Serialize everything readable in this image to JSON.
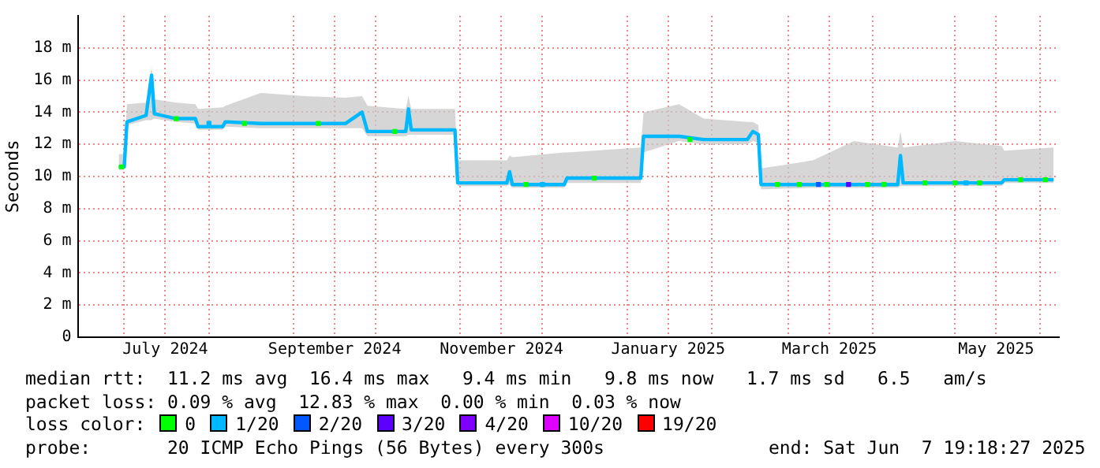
{
  "chart_data": {
    "type": "line",
    "ylabel": "Seconds",
    "legend_title": "loss color:",
    "legend": "bottom",
    "grid": true,
    "xlim": [
      "2024-06-14",
      "2025-06-08"
    ],
    "xticks": [
      {
        "value": "2024-07-01",
        "label": null
      },
      {
        "value": "2024-07-16",
        "label": "July 2024"
      },
      {
        "value": "2024-08-01",
        "label": null
      },
      {
        "value": "2024-09-01",
        "label": null
      },
      {
        "value": "2024-09-16",
        "label": "September 2024"
      },
      {
        "value": "2024-10-01",
        "label": null
      },
      {
        "value": "2024-11-01",
        "label": null
      },
      {
        "value": "2024-11-16",
        "label": "November 2024"
      },
      {
        "value": "2024-12-01",
        "label": null
      },
      {
        "value": "2025-01-01",
        "label": null
      },
      {
        "value": "2025-01-16",
        "label": "January 2025"
      },
      {
        "value": "2025-02-01",
        "label": null
      },
      {
        "value": "2025-03-01",
        "label": null
      },
      {
        "value": "2025-03-16",
        "label": "March 2025"
      },
      {
        "value": "2025-04-01",
        "label": null
      },
      {
        "value": "2025-05-01",
        "label": null
      },
      {
        "value": "2025-05-16",
        "label": "May 2025"
      },
      {
        "value": "2025-06-01",
        "label": null
      }
    ],
    "ylim": [
      0,
      20
    ],
    "yticks": [
      0,
      {
        "value": 2,
        "label": "2 m"
      },
      {
        "value": 4,
        "label": "4 m"
      },
      {
        "value": 6,
        "label": "6 m"
      },
      {
        "value": 8,
        "label": "8 m"
      },
      {
        "value": 10,
        "label": "10 m"
      },
      {
        "value": 12,
        "label": "12 m"
      },
      {
        "value": 14,
        "label": "14 m"
      },
      {
        "value": 16,
        "label": "16 m"
      },
      {
        "value": 18,
        "label": "18 m"
      }
    ],
    "x": [
      "2024-06-29",
      "2024-07-01",
      "2024-07-02",
      "2024-07-09",
      "2024-07-11",
      "2024-07-12",
      "2024-07-20",
      "2024-07-27",
      "2024-07-28",
      "2024-08-06",
      "2024-08-07",
      "2024-08-20",
      "2024-09-05",
      "2024-09-20",
      "2024-09-26",
      "2024-09-28",
      "2024-10-12",
      "2024-10-13",
      "2024-10-14",
      "2024-10-30",
      "2024-10-31",
      "2024-11-18",
      "2024-11-19",
      "2024-11-20",
      "2024-12-09",
      "2024-12-10",
      "2025-01-06",
      "2025-01-07",
      "2025-01-20",
      "2025-01-29",
      "2025-02-14",
      "2025-02-16",
      "2025-02-18",
      "2025-02-19",
      "2025-03-10",
      "2025-03-25",
      "2025-04-10",
      "2025-04-11",
      "2025-04-12",
      "2025-05-01",
      "2025-05-18",
      "2025-05-19",
      "2025-06-06"
    ],
    "series": [
      {
        "type": "line",
        "color": "#00b8ff",
        "values": [
          10.6,
          10.6,
          13.4,
          13.8,
          16.3,
          13.9,
          13.6,
          13.6,
          13.1,
          13.1,
          13.4,
          13.3,
          13.3,
          13.3,
          14.0,
          12.8,
          12.8,
          14.2,
          12.9,
          12.9,
          9.6,
          9.6,
          10.3,
          9.5,
          9.5,
          9.9,
          9.9,
          12.5,
          12.5,
          12.3,
          12.3,
          12.8,
          12.6,
          9.5,
          9.5,
          9.5,
          9.5,
          11.3,
          9.6,
          9.6,
          9.6,
          9.8,
          9.8
        ],
        "lower": [
          10.4,
          10.4,
          13.2,
          13.5,
          13.5,
          13.6,
          13.4,
          13.3,
          12.9,
          12.9,
          13.1,
          13.0,
          13.0,
          13.0,
          13.0,
          12.5,
          12.5,
          12.6,
          12.6,
          12.6,
          9.4,
          9.4,
          9.5,
          9.3,
          9.3,
          9.6,
          9.6,
          11.5,
          12.2,
          12.0,
          12.0,
          12.2,
          12.1,
          9.2,
          9.3,
          9.3,
          9.3,
          9.4,
          9.4,
          9.4,
          9.4,
          9.6,
          9.6
        ],
        "upper": [
          11.4,
          11.4,
          14.5,
          14.6,
          16.8,
          14.8,
          14.6,
          14.5,
          14.2,
          14.3,
          14.4,
          15.2,
          15.0,
          14.9,
          15.0,
          14.4,
          14.2,
          15.0,
          14.2,
          14.2,
          11.0,
          11.0,
          11.3,
          11.2,
          11.5,
          11.5,
          11.8,
          14.0,
          14.5,
          13.6,
          13.4,
          13.4,
          13.2,
          10.5,
          11.0,
          12.2,
          11.8,
          12.8,
          11.8,
          12.2,
          11.9,
          11.6,
          11.8
        ]
      },
      {
        "type": "scatter",
        "name": "0",
        "color": "#00ff00",
        "marker": "square",
        "x": [
          "2024-06-30",
          "2024-07-20",
          "2024-08-14",
          "2024-09-10",
          "2024-10-08",
          "2024-11-25",
          "2024-12-20",
          "2025-01-24",
          "2025-02-25",
          "2025-03-05",
          "2025-03-15",
          "2025-03-30",
          "2025-04-05",
          "2025-04-20",
          "2025-05-01",
          "2025-05-10",
          "2025-05-25",
          "2025-06-03"
        ],
        "values": [
          10.6,
          13.6,
          13.3,
          13.3,
          12.8,
          9.5,
          9.9,
          12.3,
          9.5,
          9.5,
          9.5,
          9.5,
          9.5,
          9.6,
          9.6,
          9.6,
          9.8,
          9.8
        ]
      },
      {
        "type": "scatter",
        "name": "1/20",
        "color": "#00b8ff",
        "marker": "square",
        "x": [
          "2024-08-01",
          "2024-12-01",
          "2025-05-05"
        ],
        "values": [
          13.3,
          9.5,
          9.6
        ]
      },
      {
        "type": "scatter",
        "name": "2/20",
        "color": "#0059ff",
        "marker": "square",
        "x": [
          "2025-03-12"
        ],
        "values": [
          9.5
        ]
      },
      {
        "type": "scatter",
        "name": "3/20",
        "color": "#5e00ff",
        "marker": "square",
        "x": [
          "2025-03-23"
        ],
        "values": [
          9.5
        ]
      },
      {
        "type": "scatter",
        "name": "4/20",
        "color": "#7e00ff",
        "marker": "square",
        "values": [
          null,
          null,
          null,
          null,
          null,
          null,
          null,
          null,
          null,
          null,
          null,
          null,
          null,
          null,
          null,
          null,
          null,
          null,
          null,
          null,
          null,
          null,
          null,
          null,
          null,
          null,
          null,
          null,
          null,
          null,
          null,
          null,
          null,
          null,
          null,
          null,
          null,
          null,
          null,
          null,
          null,
          null,
          null
        ]
      },
      {
        "type": "scatter",
        "name": "10/20",
        "color": "#dd00ff",
        "marker": "square",
        "values": [
          null,
          null,
          null,
          null,
          null,
          null,
          null,
          null,
          null,
          null,
          null,
          null,
          null,
          null,
          null,
          null,
          null,
          null,
          null,
          null,
          null,
          null,
          null,
          null,
          null,
          null,
          null,
          null,
          null,
          null,
          null,
          null,
          null,
          null,
          null,
          null,
          null,
          null,
          null,
          null,
          null,
          null,
          null
        ]
      },
      {
        "type": "scatter",
        "name": "19/20",
        "color": "#ff0000",
        "marker": "square",
        "values": [
          null,
          null,
          null,
          null,
          null,
          null,
          null,
          null,
          null,
          null,
          null,
          null,
          null,
          null,
          null,
          null,
          null,
          null,
          null,
          null,
          null,
          null,
          null,
          null,
          null,
          null,
          null,
          null,
          null,
          null,
          null,
          null,
          null,
          null,
          null,
          null,
          null,
          null,
          null,
          null,
          null,
          null,
          null
        ]
      }
    ],
    "annotations": [
      "median rtt:  11.2 ms avg  16.4 ms max   9.4 ms min   9.8 ms now   1.7 ms sd   6.5   am/s",
      "packet loss: 0.09 % avg  12.83 % max  0.00 % min  0.03 % now",
      "probe:       20 ICMP Echo Pings (56 Bytes) every 300s",
      "end: Sat Jun  7 19:18:27 2025"
    ]
  }
}
